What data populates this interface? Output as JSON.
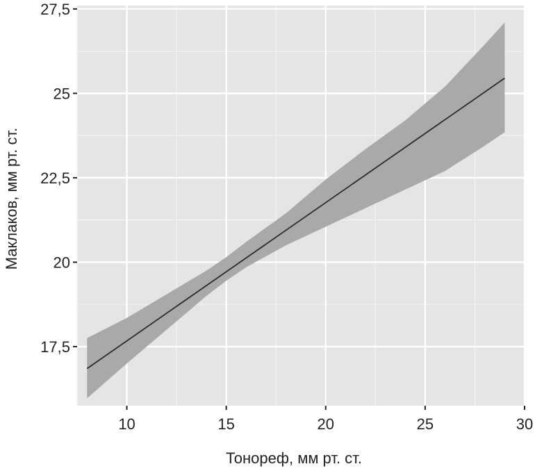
{
  "chart_data": {
    "type": "line",
    "title": "",
    "xlabel": "Тонореф, мм рт. ст.",
    "ylabel": "Маклаков, мм рт. ст.",
    "xlim": [
      7.5,
      30
    ],
    "ylim": [
      15.75,
      27.6
    ],
    "x_ticks": [
      10,
      15,
      20,
      25,
      30
    ],
    "x_tick_labels": [
      "10",
      "15",
      "20",
      "25",
      "30"
    ],
    "y_ticks": [
      17.5,
      20,
      22.5,
      25,
      27.5
    ],
    "y_tick_labels": [
      "17,5",
      "20",
      "22,5",
      "25",
      "27,5"
    ],
    "grid": true,
    "series": [
      {
        "x": [
          8,
          29
        ],
        "y": [
          16.85,
          25.45
        ],
        "color": "#2b2b2b"
      }
    ],
    "confidence_band": {
      "x": [
        8,
        10,
        12,
        14,
        15,
        16,
        18,
        20,
        22,
        24,
        26,
        28,
        29
      ],
      "lower": [
        15.97,
        17.0,
        18.0,
        19.0,
        19.45,
        19.85,
        20.5,
        21.05,
        21.6,
        22.15,
        22.7,
        23.45,
        23.85
      ],
      "upper": [
        17.75,
        18.35,
        19.05,
        19.75,
        20.15,
        20.6,
        21.45,
        22.45,
        23.35,
        24.2,
        25.2,
        26.45,
        27.1
      ],
      "color": "#a9a9a9"
    },
    "colors": {
      "panel": "#e5e5e5",
      "grid_major": "#ffffff",
      "grid_minor": "#f2f2f2",
      "axis": "#222222"
    }
  }
}
